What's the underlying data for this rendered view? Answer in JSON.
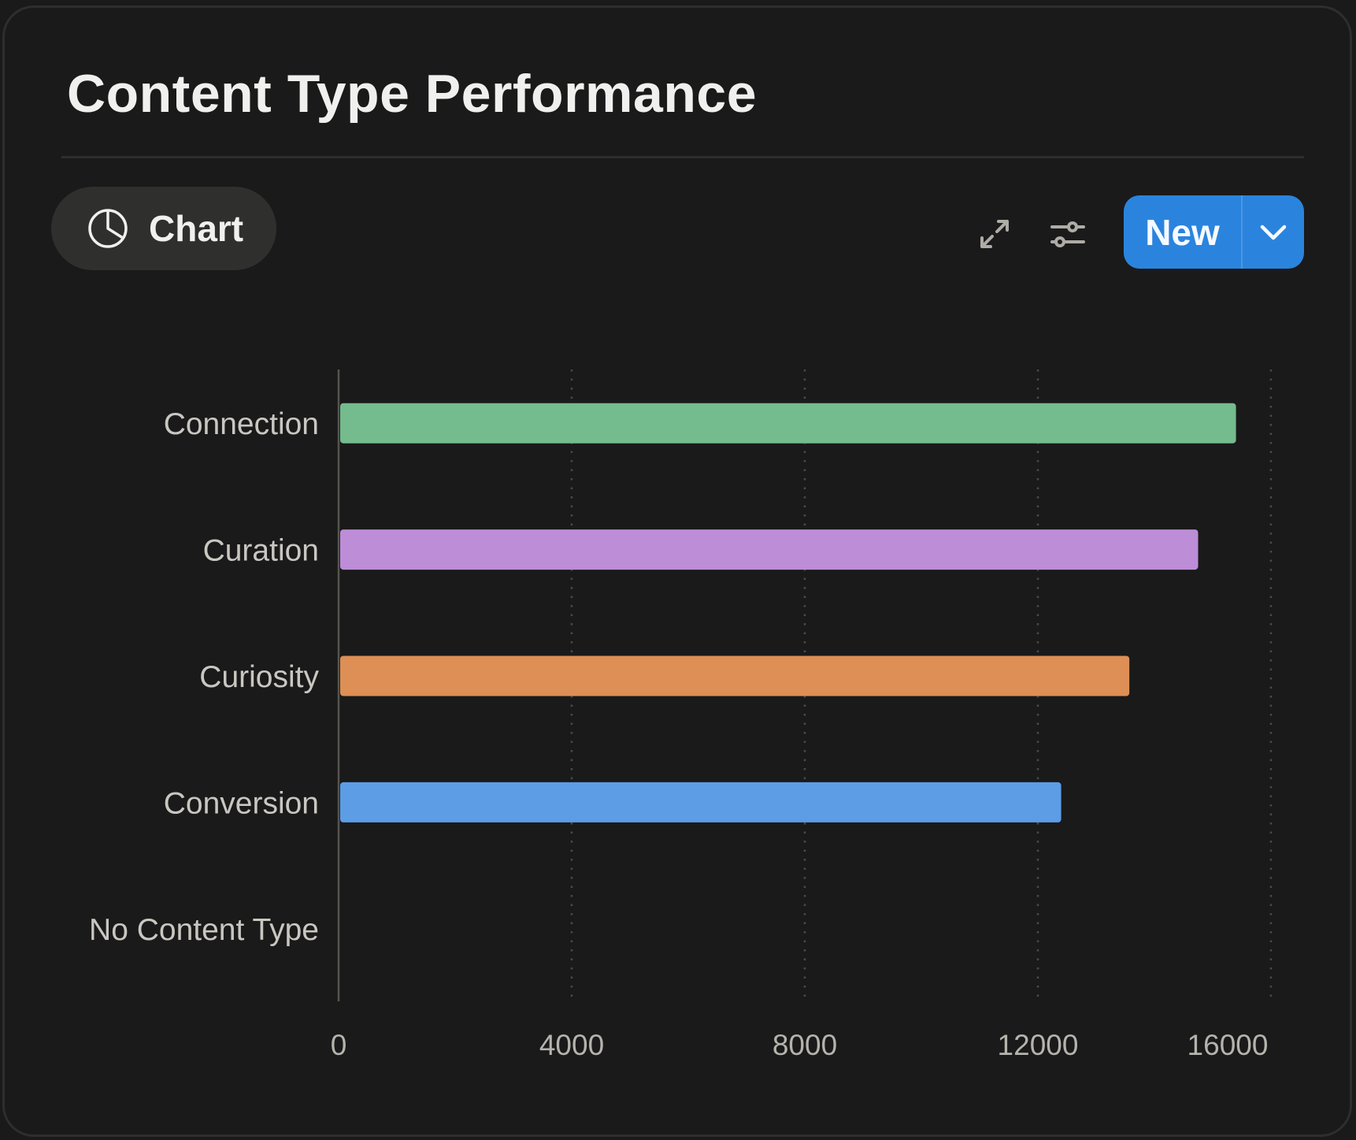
{
  "header": {
    "title": "Content Type Performance"
  },
  "toolbar": {
    "view_label": "Chart",
    "view_icon": "pie-chart-icon",
    "expand_icon": "expand-icon",
    "filter_icon": "sliders-icon",
    "new_label": "New",
    "new_dropdown_icon": "chevron-down-icon"
  },
  "colors": {
    "accent": "#2a84de",
    "background": "#1a1a1a"
  },
  "chart_data": {
    "type": "bar",
    "orientation": "horizontal",
    "title": "Content Type Performance",
    "categories": [
      "Connection",
      "Curation",
      "Curiosity",
      "Conversion",
      "No Content Type"
    ],
    "values": [
      15400,
      14750,
      13570,
      12400,
      0
    ],
    "colors": [
      "#74bb8d",
      "#bd8dd8",
      "#de8f55",
      "#5c9de6",
      "#888888"
    ],
    "xlim": [
      0,
      16000
    ],
    "xticks": [
      0,
      4000,
      8000,
      12000,
      16000
    ],
    "xtick_labels": [
      "0",
      "4000",
      "8000",
      "12000",
      "16000"
    ],
    "grid": "vertical dotted",
    "xlabel": "",
    "ylabel": ""
  }
}
